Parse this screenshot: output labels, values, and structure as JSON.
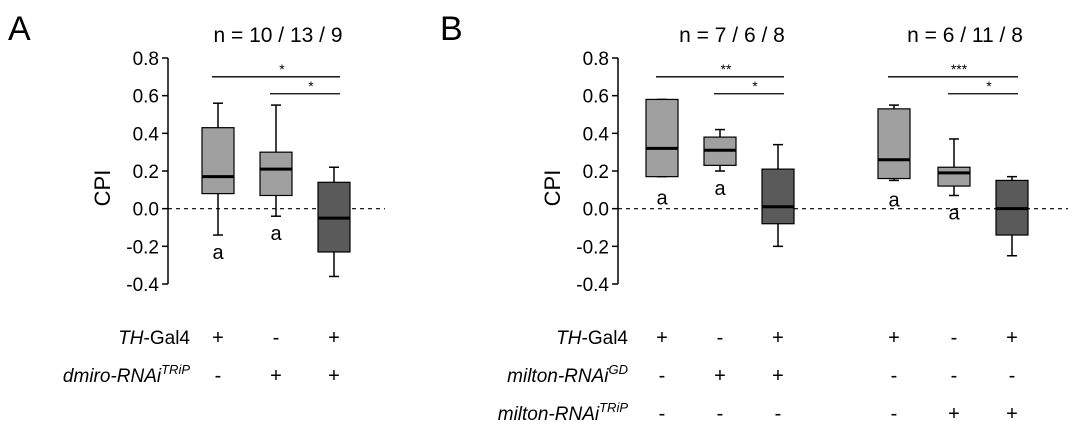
{
  "chart_data": [
    {
      "type": "box",
      "panel": "A",
      "n_label": "n = 10 / 13 / 9",
      "ylabel": "CPI",
      "ylim": [
        -0.4,
        0.8
      ],
      "yticks": [
        "0.8",
        "0.6",
        "0.4",
        "0.2",
        "0.0",
        "-0.2",
        "-0.4"
      ],
      "reference_line": 0.0,
      "boxes": [
        {
          "min": -0.14,
          "q1": 0.08,
          "median": 0.17,
          "q3": 0.43,
          "max": 0.56,
          "color": "#a0a0a0",
          "annotation": "a"
        },
        {
          "min": -0.04,
          "q1": 0.07,
          "median": 0.21,
          "q3": 0.3,
          "max": 0.55,
          "color": "#a0a0a0",
          "annotation": "a"
        },
        {
          "min": -0.36,
          "q1": -0.23,
          "median": -0.05,
          "q3": 0.14,
          "max": 0.22,
          "color": "#5a5a5a",
          "annotation": ""
        }
      ],
      "significance": [
        {
          "from": 0,
          "to": 2,
          "label": "*",
          "y": 0.7
        },
        {
          "from": 1,
          "to": 2,
          "label": "*",
          "y": 0.61
        }
      ],
      "genotype_rows": [
        {
          "italic": "TH",
          "suffix": "-Gal4",
          "sup": "",
          "signs": [
            "+",
            "-",
            "+"
          ]
        },
        {
          "italic": "dmiro-RNAi",
          "suffix": "",
          "sup": "TRiP",
          "signs": [
            "-",
            "+",
            "+"
          ]
        }
      ]
    },
    {
      "type": "box",
      "panel": "B",
      "ylabel": "CPI",
      "ylim": [
        -0.4,
        0.8
      ],
      "yticks": [
        "0.8",
        "0.6",
        "0.4",
        "0.2",
        "0.0",
        "-0.2",
        "-0.4"
      ],
      "reference_line": 0.0,
      "groups": [
        {
          "n_label": "n = 7 / 6 / 8",
          "boxes": [
            {
              "min": 0.17,
              "q1": 0.17,
              "median": 0.32,
              "q3": 0.58,
              "max": 0.58,
              "color": "#a0a0a0",
              "annotation": "a"
            },
            {
              "min": 0.2,
              "q1": 0.23,
              "median": 0.31,
              "q3": 0.38,
              "max": 0.42,
              "color": "#a0a0a0",
              "annotation": "a"
            },
            {
              "min": -0.2,
              "q1": -0.08,
              "median": 0.01,
              "q3": 0.21,
              "max": 0.34,
              "color": "#5a5a5a",
              "annotation": ""
            }
          ],
          "significance": [
            {
              "from": 0,
              "to": 2,
              "label": "**",
              "y": 0.7
            },
            {
              "from": 1,
              "to": 2,
              "label": "*",
              "y": 0.61
            }
          ]
        },
        {
          "n_label": "n = 6 / 11 / 8",
          "boxes": [
            {
              "min": 0.15,
              "q1": 0.16,
              "median": 0.26,
              "q3": 0.53,
              "max": 0.55,
              "color": "#a0a0a0",
              "annotation": "a"
            },
            {
              "min": 0.07,
              "q1": 0.12,
              "median": 0.19,
              "q3": 0.22,
              "max": 0.37,
              "color": "#a0a0a0",
              "annotation": "a"
            },
            {
              "min": -0.25,
              "q1": -0.14,
              "median": 0.0,
              "q3": 0.15,
              "max": 0.17,
              "color": "#5a5a5a",
              "annotation": ""
            }
          ],
          "significance": [
            {
              "from": 0,
              "to": 2,
              "label": "***",
              "y": 0.7
            },
            {
              "from": 1,
              "to": 2,
              "label": "*",
              "y": 0.61
            }
          ]
        }
      ],
      "genotype_rows": [
        {
          "italic": "TH",
          "suffix": "-Gal4",
          "sup": "",
          "signs": [
            "+",
            "-",
            "+",
            "+",
            "-",
            "+"
          ]
        },
        {
          "italic": "milton-RNAi",
          "suffix": "",
          "sup": "GD",
          "signs": [
            "-",
            "+",
            "+",
            "-",
            "-",
            "-"
          ]
        },
        {
          "italic": "milton-RNAi",
          "suffix": "",
          "sup": "TRiP",
          "signs": [
            "-",
            "-",
            "-",
            "-",
            "+",
            "+"
          ]
        }
      ]
    }
  ]
}
